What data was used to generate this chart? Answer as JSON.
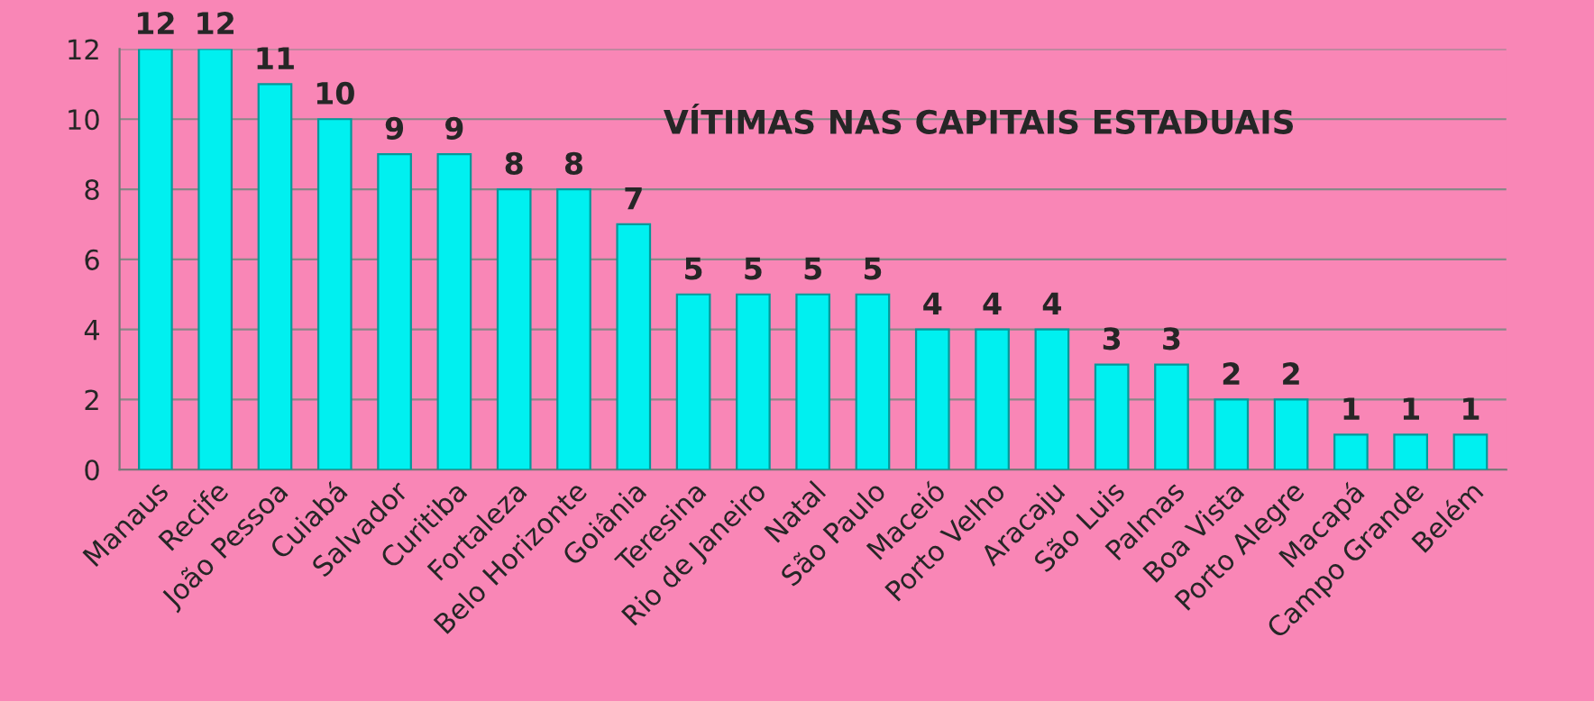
{
  "chart_data": {
    "type": "bar",
    "title": "VÍTIMAS NAS CAPITAIS ESTADUAIS",
    "categories": [
      "Manaus",
      "Recife",
      "João Pessoa",
      "Cuiabá",
      "Salvador",
      "Curitiba",
      "Fortaleza",
      "Belo Horizonte",
      "Goiânia",
      "Teresina",
      "Rio de Janeiro",
      "Natal",
      "São Paulo",
      "Maceió",
      "Porto Velho",
      "Aracaju",
      "São Luis",
      "Palmas",
      "Boa Vista",
      "Porto Alegre",
      "Macapá",
      "Campo Grande",
      "Belém"
    ],
    "values": [
      12,
      12,
      11,
      10,
      9,
      9,
      8,
      8,
      7,
      5,
      5,
      5,
      5,
      4,
      4,
      4,
      3,
      3,
      2,
      2,
      1,
      1,
      1
    ],
    "color": "#00f0f0",
    "ylim": [
      0,
      12
    ],
    "yticks": [
      0,
      2,
      4,
      6,
      8,
      10,
      12
    ],
    "grid": "y",
    "data_labels": true
  }
}
